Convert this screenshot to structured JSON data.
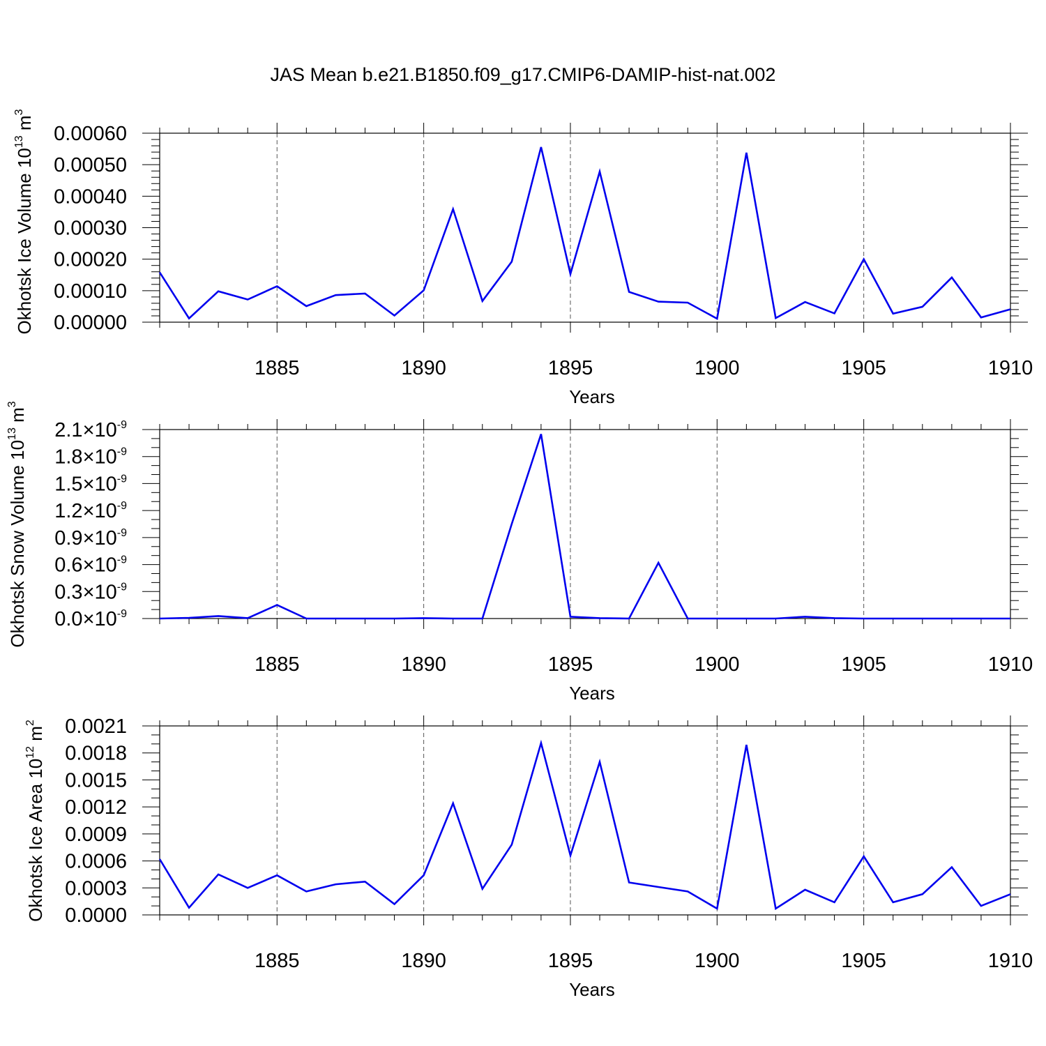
{
  "figure": {
    "title": "JAS Mean b.e21.B1850.f09_g17.CMIP6-DAMIP-hist-nat.002"
  },
  "chart_data": [
    {
      "type": "line",
      "title": "",
      "xlabel": "Years",
      "ylabel": "Okhotsk Ice Volume 10",
      "ylabel_exp": "13",
      "ylabel_unit": " m",
      "ylabel_unit_exp": "3",
      "xlim": [
        1881,
        1910
      ],
      "ylim": [
        0,
        0.0006
      ],
      "x_ticks": [
        1885,
        1890,
        1895,
        1900,
        1905,
        1910
      ],
      "x_tick_labels": [
        "1885",
        "1890",
        "1895",
        "1900",
        "1905",
        "1910"
      ],
      "y_ticks": [
        0,
        0.0001,
        0.0002,
        0.0003,
        0.0004,
        0.0005,
        0.0006
      ],
      "y_tick_labels": [
        "0.00000",
        "0.00010",
        "0.00020",
        "0.00030",
        "0.00040",
        "0.00050",
        "0.00060"
      ],
      "grid": "vertical dashed at major x ticks",
      "line_color": "#0000ee",
      "x": [
        1881,
        1882,
        1883,
        1884,
        1885,
        1886,
        1887,
        1888,
        1889,
        1890,
        1891,
        1892,
        1893,
        1894,
        1895,
        1896,
        1897,
        1898,
        1899,
        1900,
        1901,
        1902,
        1903,
        1904,
        1905,
        1906,
        1907,
        1908,
        1909,
        1910
      ],
      "values": [
        0.000158,
        1.2e-05,
        9.8e-05,
        7.2e-05,
        0.000114,
        5.1e-05,
        8.6e-05,
        9.1e-05,
        2.1e-05,
        0.000101,
        0.000359,
        6.7e-05,
        0.000192,
        0.000556,
        0.000153,
        0.000478,
        9.6e-05,
        6.5e-05,
        6.2e-05,
        1.1e-05,
        0.000538,
        1.3e-05,
        6.4e-05,
        2.8e-05,
        0.0002,
        2.7e-05,
        4.9e-05,
        0.000142,
        1.5e-05,
        4.1e-05
      ]
    },
    {
      "type": "line",
      "title": "",
      "xlabel": "Years",
      "ylabel": "Okhotsk Snow Volume 10",
      "ylabel_exp": "13",
      "ylabel_unit": " m",
      "ylabel_unit_exp": "3",
      "xlim": [
        1881,
        1910
      ],
      "ylim": [
        0,
        2.1e-09
      ],
      "x_ticks": [
        1885,
        1890,
        1895,
        1900,
        1905,
        1910
      ],
      "x_tick_labels": [
        "1885",
        "1890",
        "1895",
        "1900",
        "1905",
        "1910"
      ],
      "y_ticks": [
        0,
        3e-10,
        6e-10,
        9e-10,
        1.2e-09,
        1.5e-09,
        1.8e-09,
        2.1e-09
      ],
      "y_tick_mantissas": [
        "0.0",
        "0.3",
        "0.6",
        "0.9",
        "1.2",
        "1.5",
        "1.8",
        "2.1"
      ],
      "y_tick_times": "×10",
      "y_tick_exp": "-9",
      "grid": "vertical dashed at major x ticks",
      "line_color": "#0000ee",
      "x": [
        1881,
        1882,
        1883,
        1884,
        1885,
        1886,
        1887,
        1888,
        1889,
        1890,
        1891,
        1892,
        1893,
        1894,
        1895,
        1896,
        1897,
        1898,
        1899,
        1900,
        1901,
        1902,
        1903,
        1904,
        1905,
        1906,
        1907,
        1908,
        1909,
        1910
      ],
      "values": [
        0,
        8e-12,
        2.8e-11,
        5e-12,
        1.5e-10,
        0,
        0,
        0,
        0,
        5e-12,
        0,
        0,
        1.05e-09,
        2.05e-09,
        2e-11,
        5e-12,
        0,
        6.2e-10,
        0,
        0,
        0,
        0,
        2e-11,
        5e-12,
        0,
        0,
        0,
        0,
        0,
        0
      ]
    },
    {
      "type": "line",
      "title": "",
      "xlabel": "Years",
      "ylabel": "Okhotsk Ice Area 10",
      "ylabel_exp": "12",
      "ylabel_unit": " m",
      "ylabel_unit_exp": "2",
      "xlim": [
        1881,
        1910
      ],
      "ylim": [
        0,
        0.0021
      ],
      "x_ticks": [
        1885,
        1890,
        1895,
        1900,
        1905,
        1910
      ],
      "x_tick_labels": [
        "1885",
        "1890",
        "1895",
        "1900",
        "1905",
        "1910"
      ],
      "y_ticks": [
        0,
        0.0003,
        0.0006,
        0.0009,
        0.0012,
        0.0015,
        0.0018,
        0.0021
      ],
      "y_tick_labels": [
        "0.0000",
        "0.0003",
        "0.0006",
        "0.0009",
        "0.0012",
        "0.0015",
        "0.0018",
        "0.0021"
      ],
      "grid": "vertical dashed at major x ticks",
      "line_color": "#0000ee",
      "x": [
        1881,
        1882,
        1883,
        1884,
        1885,
        1886,
        1887,
        1888,
        1889,
        1890,
        1891,
        1892,
        1893,
        1894,
        1895,
        1896,
        1897,
        1898,
        1899,
        1900,
        1901,
        1902,
        1903,
        1904,
        1905,
        1906,
        1907,
        1908,
        1909,
        1910
      ],
      "values": [
        0.00062,
        8e-05,
        0.00045,
        0.0003,
        0.00044,
        0.00026,
        0.00034,
        0.00037,
        0.00012,
        0.00044,
        0.00124,
        0.00029,
        0.00078,
        0.00191,
        0.00066,
        0.0017,
        0.00036,
        0.00031,
        0.00026,
        7e-05,
        0.00189,
        7e-05,
        0.00028,
        0.00014,
        0.00065,
        0.00014,
        0.00023,
        0.00053,
        0.0001,
        0.00023
      ]
    }
  ]
}
